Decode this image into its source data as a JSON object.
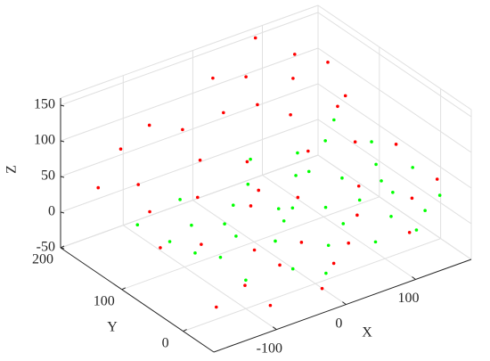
{
  "chart_data": {
    "type": "scatter3d",
    "xlabel": "X",
    "ylabel": "Y",
    "zlabel": "Z",
    "xlim": [
      -190,
      180
    ],
    "ylim": [
      -50,
      200
    ],
    "zlim": [
      -50,
      160
    ],
    "xticks": [
      -100,
      0,
      100
    ],
    "yticks": [
      0,
      100,
      200
    ],
    "zticks": [
      -50,
      0,
      50,
      100,
      150
    ],
    "grid": true,
    "series": [
      {
        "color": "#ff0000",
        "x": [
          -180,
          -150,
          -120,
          -100,
          -80,
          -60,
          -40,
          -20,
          0,
          20,
          40,
          60,
          80,
          100,
          120,
          140,
          160,
          175,
          90,
          -170,
          -130,
          -110,
          -90,
          -70,
          -50,
          -30,
          -10,
          10,
          30,
          50,
          70,
          110,
          130,
          150,
          -160,
          -140,
          0,
          -60,
          60,
          120,
          -20,
          100
        ],
        "y": [
          150,
          100,
          50,
          -40,
          180,
          120,
          60,
          0,
          -30,
          190,
          140,
          80,
          20,
          -40,
          170,
          110,
          50,
          0,
          200,
          60,
          170,
          -10,
          90,
          20,
          160,
          -45,
          100,
          40,
          -20,
          170,
          120,
          60,
          -10,
          150,
          -20,
          130,
          150,
          -10,
          0,
          100,
          70,
          150
        ],
        "z": [
          60,
          45,
          18,
          -22,
          95,
          74,
          38,
          15,
          -4,
          120,
          105,
          68,
          47,
          10,
          130,
          100,
          60,
          35,
          146,
          25,
          85,
          -8,
          50,
          10,
          90,
          -20,
          66,
          44,
          8,
          123,
          92,
          75,
          30,
          120,
          -15,
          62,
          102,
          3,
          25,
          98,
          47,
          115
        ]
      },
      {
        "color": "#00ff00",
        "x": [
          -150,
          -120,
          -100,
          -80,
          -60,
          -40,
          -20,
          0,
          20,
          40,
          60,
          80,
          100,
          120,
          140,
          160,
          175,
          170,
          150,
          130,
          110,
          90,
          70,
          50,
          30,
          10,
          -10,
          -30,
          -50,
          -70,
          -90,
          -110,
          -130,
          0,
          60,
          120,
          140,
          100
        ],
        "y": [
          120,
          60,
          0,
          130,
          80,
          20,
          -40,
          110,
          60,
          0,
          -30,
          120,
          70,
          10,
          -20,
          90,
          40,
          -10,
          140,
          40,
          -40,
          30,
          90,
          40,
          140,
          -10,
          40,
          100,
          -20,
          50,
          100,
          30,
          90,
          60,
          100,
          120,
          60,
          -10
        ],
        "z": [
          15,
          0,
          -10,
          20,
          8,
          12,
          -5,
          25,
          14,
          20,
          5,
          35,
          22,
          30,
          15,
          40,
          28,
          20,
          45,
          25,
          10,
          18,
          30,
          16,
          32,
          6,
          18,
          12,
          0,
          12,
          5,
          8,
          2,
          20,
          22,
          38,
          33,
          15
        ]
      }
    ]
  }
}
